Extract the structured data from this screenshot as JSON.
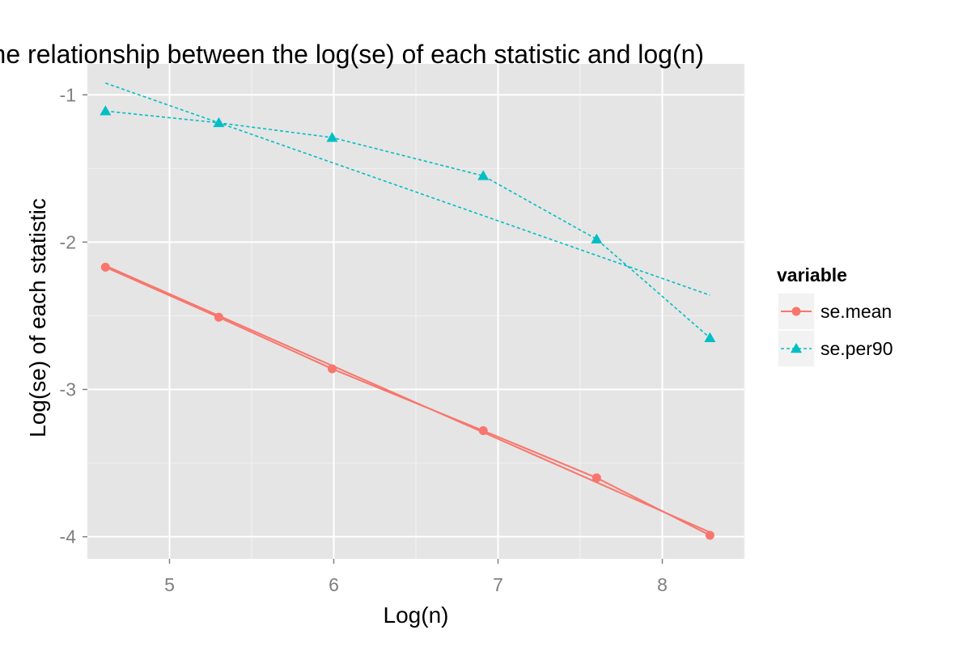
{
  "chart_data": {
    "type": "line",
    "title": "The relationship between the log(se) of each statistic and log(n)",
    "xlabel": "Log(n)",
    "ylabel": "Log(se) of each statistic",
    "xlim": [
      4.5,
      8.5
    ],
    "ylim": [
      -4.15,
      -0.79
    ],
    "x_ticks": [
      5,
      6,
      7,
      8
    ],
    "y_ticks": [
      -4,
      -3,
      -2,
      -1
    ],
    "grid": true,
    "legend": {
      "title": "variable",
      "position": "right"
    },
    "series": [
      {
        "name": "se.mean",
        "color": "#F8766D",
        "marker": "circle",
        "linestyle": "solid",
        "x": [
          4.61,
          5.3,
          5.99,
          6.91,
          7.6,
          8.29
        ],
        "y": [
          -2.17,
          -2.51,
          -2.86,
          -3.28,
          -3.6,
          -3.99
        ],
        "fit": {
          "x": [
            4.61,
            8.29
          ],
          "y": [
            -2.16,
            -3.97
          ]
        }
      },
      {
        "name": "se.per90",
        "color": "#00BFC4",
        "marker": "triangle",
        "linestyle": "dashed",
        "x": [
          4.61,
          5.3,
          5.99,
          6.91,
          7.6,
          8.29
        ],
        "y": [
          -1.11,
          -1.19,
          -1.29,
          -1.55,
          -1.98,
          -2.65
        ],
        "fit": {
          "x": [
            4.61,
            8.29
          ],
          "y": [
            -0.92,
            -2.36
          ]
        }
      }
    ]
  }
}
